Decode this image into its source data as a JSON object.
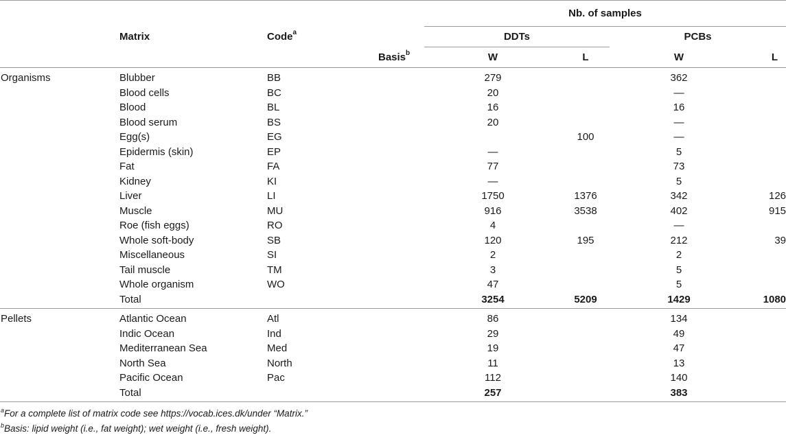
{
  "header": {
    "nb_samples": "Nb. of samples",
    "matrix": "Matrix",
    "code": "Code",
    "code_sup": "a",
    "ddts": "DDTs",
    "pcbs": "PCBs",
    "basis": "Basis",
    "basis_sup": "b",
    "w": "W",
    "l": "L"
  },
  "organisms": {
    "group": "Organisms",
    "rows": [
      {
        "matrix": "Blubber",
        "code": "BB",
        "ddt_w": "279",
        "ddt_l": "",
        "pcb_w": "362",
        "pcb_l": ""
      },
      {
        "matrix": "Blood cells",
        "code": "BC",
        "ddt_w": "20",
        "ddt_l": "",
        "pcb_w": "—",
        "pcb_l": ""
      },
      {
        "matrix": "Blood",
        "code": "BL",
        "ddt_w": "16",
        "ddt_l": "",
        "pcb_w": "16",
        "pcb_l": ""
      },
      {
        "matrix": "Blood serum",
        "code": "BS",
        "ddt_w": "20",
        "ddt_l": "",
        "pcb_w": "—",
        "pcb_l": ""
      },
      {
        "matrix": "Egg(s)",
        "code": "EG",
        "ddt_w": "",
        "ddt_l": "100",
        "pcb_w": "—",
        "pcb_l": ""
      },
      {
        "matrix": "Epidermis (skin)",
        "code": "EP",
        "ddt_w": "—",
        "ddt_l": "",
        "pcb_w": "5",
        "pcb_l": ""
      },
      {
        "matrix": "Fat",
        "code": "FA",
        "ddt_w": "77",
        "ddt_l": "",
        "pcb_w": "73",
        "pcb_l": ""
      },
      {
        "matrix": "Kidney",
        "code": "KI",
        "ddt_w": "—",
        "ddt_l": "",
        "pcb_w": "5",
        "pcb_l": ""
      },
      {
        "matrix": "Liver",
        "code": "LI",
        "ddt_w": "1750",
        "ddt_l": "1376",
        "pcb_w": "342",
        "pcb_l": "126"
      },
      {
        "matrix": "Muscle",
        "code": "MU",
        "ddt_w": "916",
        "ddt_l": "3538",
        "pcb_w": "402",
        "pcb_l": "915"
      },
      {
        "matrix": "Roe (fish eggs)",
        "code": "RO",
        "ddt_w": "4",
        "ddt_l": "",
        "pcb_w": "—",
        "pcb_l": ""
      },
      {
        "matrix": "Whole soft-body",
        "code": "SB",
        "ddt_w": "120",
        "ddt_l": "195",
        "pcb_w": "212",
        "pcb_l": "39"
      },
      {
        "matrix": "Miscellaneous",
        "code": "SI",
        "ddt_w": "2",
        "ddt_l": "",
        "pcb_w": "2",
        "pcb_l": ""
      },
      {
        "matrix": "Tail muscle",
        "code": "TM",
        "ddt_w": "3",
        "ddt_l": "",
        "pcb_w": "5",
        "pcb_l": ""
      },
      {
        "matrix": "Whole organism",
        "code": "WO",
        "ddt_w": "47",
        "ddt_l": "",
        "pcb_w": "5",
        "pcb_l": ""
      }
    ],
    "total": {
      "label": "Total",
      "ddt_w": "3254",
      "ddt_l": "5209",
      "pcb_w": "1429",
      "pcb_l": "1080"
    }
  },
  "pellets": {
    "group": "Pellets",
    "rows": [
      {
        "matrix": "Atlantic Ocean",
        "code": "Atl",
        "ddt_w": "86",
        "ddt_l": "",
        "pcb_w": "134",
        "pcb_l": ""
      },
      {
        "matrix": "Indic Ocean",
        "code": "Ind",
        "ddt_w": "29",
        "ddt_l": "",
        "pcb_w": "49",
        "pcb_l": ""
      },
      {
        "matrix": "Mediterranean Sea",
        "code": "Med",
        "ddt_w": "19",
        "ddt_l": "",
        "pcb_w": "47",
        "pcb_l": ""
      },
      {
        "matrix": "North Sea",
        "code": "North",
        "ddt_w": "11",
        "ddt_l": "",
        "pcb_w": "13",
        "pcb_l": ""
      },
      {
        "matrix": "Pacific Ocean",
        "code": "Pac",
        "ddt_w": "112",
        "ddt_l": "",
        "pcb_w": "140",
        "pcb_l": ""
      }
    ],
    "total": {
      "label": "Total",
      "ddt_w": "257",
      "ddt_l": "",
      "pcb_w": "383",
      "pcb_l": ""
    }
  },
  "footnotes": [
    {
      "sup": "a",
      "text": "For a complete list of matrix code see https://vocab.ices.dk/under “Matrix.”"
    },
    {
      "sup": "b",
      "text": "Basis: lipid weight (i.e., fat weight); wet weight (i.e., fresh weight)."
    }
  ]
}
